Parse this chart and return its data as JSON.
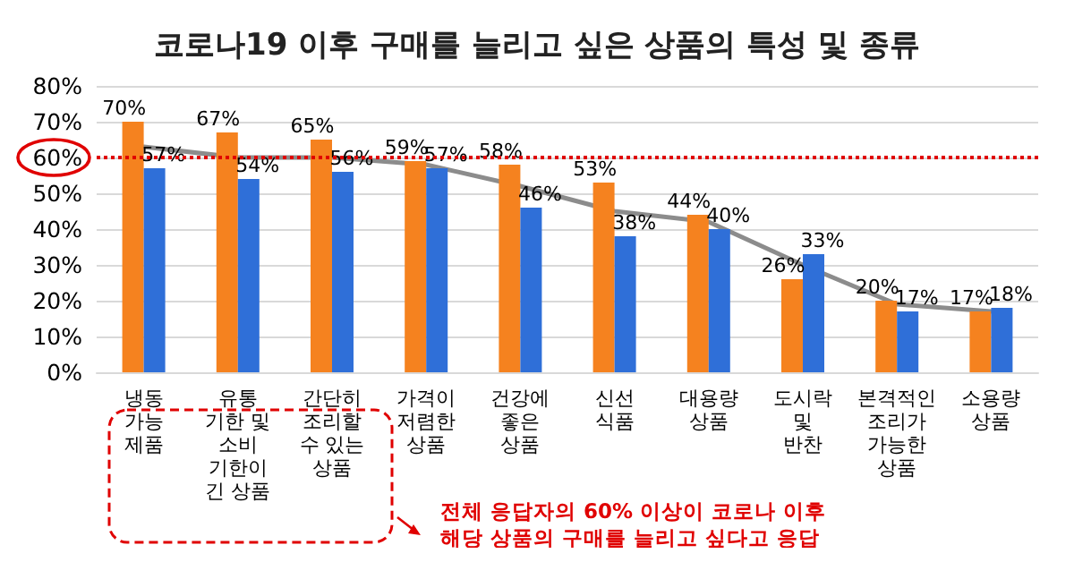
{
  "chart_data": {
    "type": "bar",
    "title": "코로나19 이후 구매를 늘리고 싶은 상품의 특성 및 종류",
    "categories": [
      "냉동\n가능\n제품",
      "유통\n기한 및\n소비\n기한이\n긴 상품",
      "간단히\n조리할\n수 있는\n상품",
      "가격이\n저렴한\n상품",
      "건강에\n좋은\n상품",
      "신선\n식품",
      "대용량\n상품",
      "도시락\n및\n반찬",
      "본격적인\n조리가\n가능한\n상품",
      "소용량\n상품"
    ],
    "series": [
      {
        "color": "#f5821f",
        "values": [
          70,
          67,
          65,
          59,
          58,
          53,
          44,
          26,
          20,
          17
        ],
        "value_labels": [
          "70%",
          "67%",
          "65%",
          "59%",
          "58%",
          "53%",
          "44%",
          "26%",
          "20%",
          "17%"
        ]
      },
      {
        "color": "#2f6fd8",
        "values": [
          57,
          54,
          56,
          57,
          46,
          38,
          40,
          33,
          17,
          18
        ],
        "value_labels": [
          "57%",
          "54%",
          "56%",
          "57%",
          "46%",
          "38%",
          "40%",
          "33%",
          "17%",
          "18%"
        ]
      },
      {
        "type": "line",
        "color": "#8c8c8c",
        "values": [
          63,
          60,
          60,
          58,
          52,
          45,
          42,
          30,
          19,
          17
        ],
        "marker": "none",
        "line_style": "solid"
      }
    ],
    "ylim": [
      0,
      80
    ],
    "yticks": [
      {
        "value": 0,
        "label": "0%"
      },
      {
        "value": 10,
        "label": "10%"
      },
      {
        "value": 20,
        "label": "20%"
      },
      {
        "value": 30,
        "label": "30%"
      },
      {
        "value": 40,
        "label": "40%"
      },
      {
        "value": 50,
        "label": "50%"
      },
      {
        "value": 60,
        "label": "60%"
      },
      {
        "value": 70,
        "label": "70%"
      },
      {
        "value": 80,
        "label": "80%"
      }
    ],
    "grid": "y",
    "ref_lines": [
      {
        "axis": "y",
        "value": 60,
        "color": "#e00000",
        "line_style": "dotted"
      }
    ],
    "annotations": [
      "전체 응답자의 60% 이상이 코로나 이후\n해당 상품의 구매를 늘리고 싶다고 응답"
    ]
  }
}
